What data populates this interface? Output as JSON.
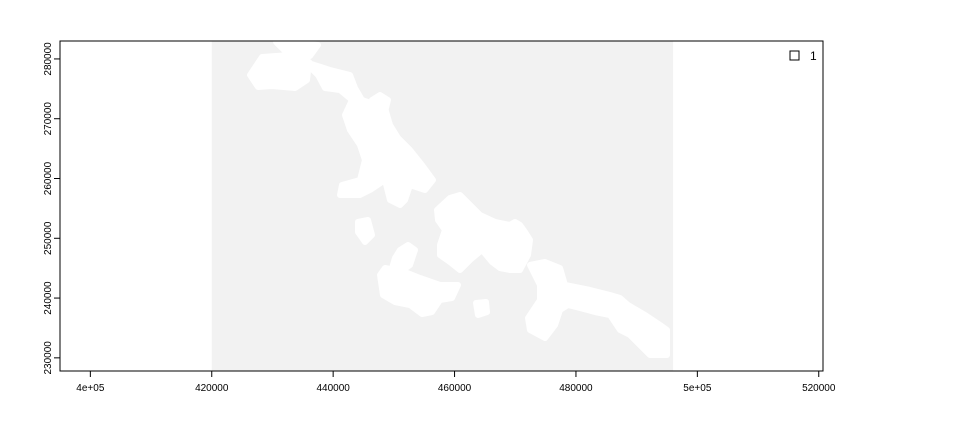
{
  "chart_data": {
    "type": "heatmap",
    "title": "",
    "xlabel": "",
    "ylabel": "",
    "xlim": [
      395000,
      520700
    ],
    "ylim": [
      227800,
      283000
    ],
    "raster_extent": {
      "xmin": 420000,
      "xmax": 496000,
      "ymin": 227800,
      "ymax": 283000
    },
    "raster_fill": "#f2f2f2",
    "mask_fill": "#ffffff",
    "x_ticks": [
      {
        "value": 400000,
        "label": "4e+05"
      },
      {
        "value": 420000,
        "label": "420000"
      },
      {
        "value": 440000,
        "label": "440000"
      },
      {
        "value": 460000,
        "label": "460000"
      },
      {
        "value": 480000,
        "label": "480000"
      },
      {
        "value": 500000,
        "label": "5e+05"
      },
      {
        "value": 520000,
        "label": "520000"
      }
    ],
    "y_ticks": [
      {
        "value": 230000,
        "label": "230000"
      },
      {
        "value": 240000,
        "label": "240000"
      },
      {
        "value": 250000,
        "label": "250000"
      },
      {
        "value": 260000,
        "label": "260000"
      },
      {
        "value": 270000,
        "label": "270000"
      },
      {
        "value": 280000,
        "label": "280000"
      }
    ],
    "legend": {
      "position": "top-right",
      "entries": [
        {
          "label": "1",
          "fill": "#ffffff",
          "stroke": "#000000"
        }
      ]
    },
    "grid": false
  }
}
